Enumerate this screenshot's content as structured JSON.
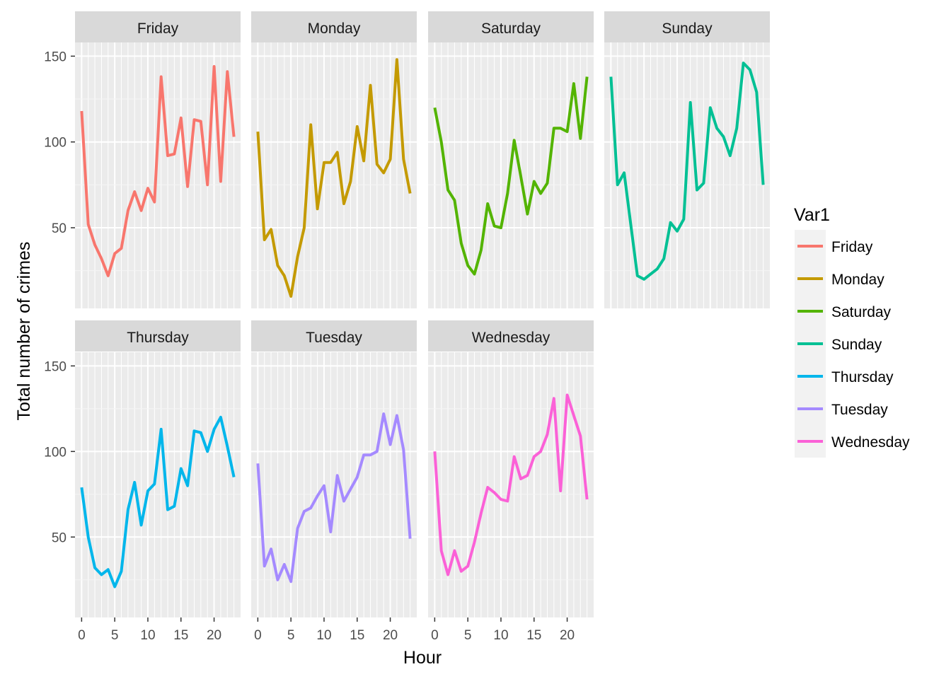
{
  "chart_data": {
    "type": "line",
    "facet_by": "day",
    "xlabel": "Hour",
    "ylabel": "Total number of crimes",
    "xlim": [
      -1,
      24
    ],
    "ylim": [
      3,
      158
    ],
    "x_ticks": [
      0,
      5,
      10,
      15,
      20
    ],
    "y_ticks": [
      50,
      100,
      150
    ],
    "grid": true,
    "legend_title": "Var1",
    "legend_position": "right",
    "x": [
      0,
      1,
      2,
      3,
      4,
      5,
      6,
      7,
      8,
      9,
      10,
      11,
      12,
      13,
      14,
      15,
      16,
      17,
      18,
      19,
      20,
      21,
      22,
      23
    ],
    "series": [
      {
        "name": "Friday",
        "color": "#F8766D",
        "values": [
          118,
          52,
          40,
          32,
          22,
          35,
          38,
          60,
          71,
          60,
          73,
          65,
          138,
          92,
          93,
          114,
          74,
          113,
          112,
          75,
          144,
          77,
          141,
          103
        ]
      },
      {
        "name": "Monday",
        "color": "#C49A00",
        "values": [
          106,
          43,
          49,
          28,
          22,
          10,
          33,
          50,
          110,
          61,
          88,
          88,
          94,
          64,
          77,
          109,
          89,
          133,
          87,
          82,
          90,
          148,
          90,
          70
        ]
      },
      {
        "name": "Saturday",
        "color": "#53B400",
        "values": [
          120,
          100,
          72,
          66,
          41,
          28,
          23,
          37,
          64,
          51,
          50,
          70,
          101,
          80,
          58,
          77,
          70,
          76,
          108,
          108,
          106,
          134,
          102,
          138
        ]
      },
      {
        "name": "Sunday",
        "color": "#00C094",
        "values": [
          138,
          75,
          82,
          52,
          22,
          20,
          23,
          26,
          32,
          53,
          48,
          55,
          123,
          72,
          76,
          120,
          108,
          103,
          92,
          108,
          146,
          142,
          129,
          75
        ]
      },
      {
        "name": "Thursday",
        "color": "#00B6EB",
        "values": [
          79,
          50,
          32,
          28,
          31,
          21,
          30,
          66,
          82,
          57,
          77,
          81,
          113,
          66,
          68,
          90,
          80,
          112,
          111,
          100,
          113,
          120,
          103,
          85
        ]
      },
      {
        "name": "Tuesday",
        "color": "#A58AFF",
        "values": [
          93,
          33,
          43,
          25,
          34,
          24,
          55,
          65,
          67,
          74,
          80,
          53,
          86,
          71,
          78,
          85,
          98,
          98,
          100,
          122,
          104,
          121,
          101,
          49
        ]
      },
      {
        "name": "Wednesday",
        "color": "#FB61D7",
        "values": [
          100,
          42,
          28,
          42,
          30,
          33,
          47,
          64,
          79,
          76,
          72,
          71,
          97,
          84,
          86,
          97,
          100,
          110,
          131,
          77,
          133,
          121,
          109,
          72
        ]
      }
    ]
  }
}
